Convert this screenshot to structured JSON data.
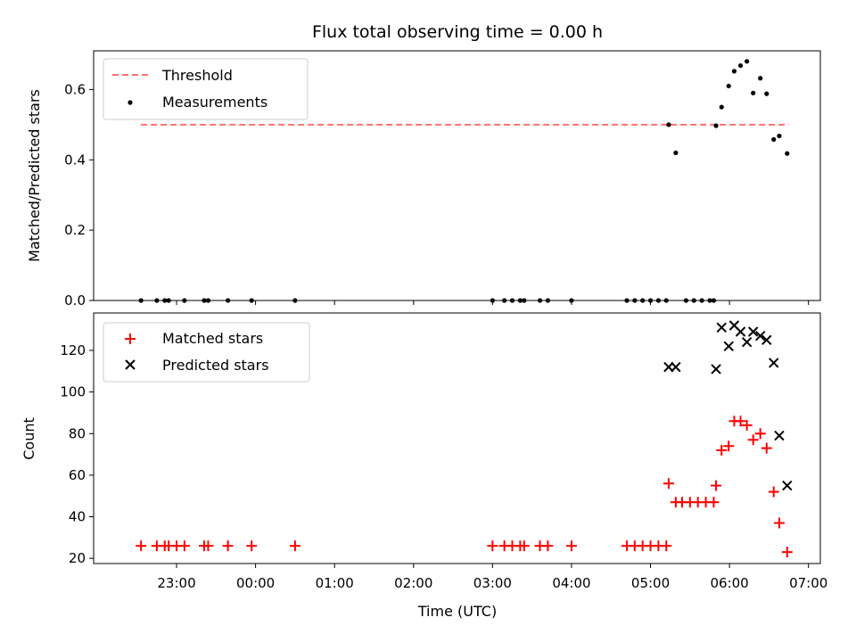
{
  "chart_data": {
    "type": "scatter",
    "title": "Flux total observing time = 0.00 h",
    "xlabel": "Time (UTC)",
    "x_ticks": [
      "23:00",
      "00:00",
      "01:00",
      "02:00",
      "03:00",
      "04:00",
      "05:00",
      "06:00",
      "07:00"
    ],
    "x_tick_hours": [
      23,
      24,
      25,
      26,
      27,
      28,
      29,
      30,
      31
    ],
    "xlim_hours": [
      21.95,
      31.15
    ],
    "top": {
      "ylabel": "Matched/Predicted stars",
      "ylim": [
        0,
        0.71
      ],
      "y_ticks": [
        0.0,
        0.2,
        0.4,
        0.6
      ],
      "y_tick_labels": [
        "0.0",
        "0.2",
        "0.4",
        "0.6"
      ],
      "legend_position": "upper-left",
      "threshold": {
        "name": "Threshold",
        "value": 0.5,
        "x_start": 22.55,
        "x_end": 30.75,
        "color": "#ff7070"
      },
      "series": [
        {
          "name": "Measurements",
          "color": "#000000",
          "points": [
            [
              22.55,
              0
            ],
            [
              22.75,
              0
            ],
            [
              22.85,
              0
            ],
            [
              22.9,
              0
            ],
            [
              23.1,
              0
            ],
            [
              23.35,
              0
            ],
            [
              23.4,
              0
            ],
            [
              23.65,
              0
            ],
            [
              23.95,
              0
            ],
            [
              24.5,
              0
            ],
            [
              27.0,
              0
            ],
            [
              27.15,
              0
            ],
            [
              27.25,
              0
            ],
            [
              27.35,
              0
            ],
            [
              27.4,
              0
            ],
            [
              27.6,
              0
            ],
            [
              27.7,
              0
            ],
            [
              28.0,
              0
            ],
            [
              28.7,
              0
            ],
            [
              28.8,
              0
            ],
            [
              28.9,
              0
            ],
            [
              29.0,
              0
            ],
            [
              29.1,
              0
            ],
            [
              29.2,
              0
            ],
            [
              29.45,
              0
            ],
            [
              29.55,
              0
            ],
            [
              29.65,
              0
            ],
            [
              29.75,
              0
            ],
            [
              29.8,
              0
            ],
            [
              29.23,
              0.5
            ],
            [
              29.32,
              0.42
            ],
            [
              29.83,
              0.497
            ],
            [
              29.9,
              0.55
            ],
            [
              29.99,
              0.61
            ],
            [
              30.06,
              0.652
            ],
            [
              30.14,
              0.668
            ],
            [
              30.22,
              0.68
            ],
            [
              30.3,
              0.59
            ],
            [
              30.39,
              0.632
            ],
            [
              30.47,
              0.588
            ],
            [
              30.56,
              0.458
            ],
            [
              30.63,
              0.468
            ],
            [
              30.73,
              0.418
            ]
          ]
        }
      ]
    },
    "bottom": {
      "ylabel": "Count",
      "ylim": [
        17.5,
        138
      ],
      "y_ticks": [
        20,
        40,
        60,
        80,
        100,
        120
      ],
      "y_tick_labels": [
        "20",
        "40",
        "60",
        "80",
        "100",
        "120"
      ],
      "legend_position": "upper-left",
      "series": [
        {
          "name": "Matched stars",
          "marker": "plus",
          "color": "#ff0000",
          "points": [
            [
              22.55,
              26
            ],
            [
              22.75,
              26
            ],
            [
              22.85,
              26
            ],
            [
              22.9,
              26
            ],
            [
              23.0,
              26
            ],
            [
              23.1,
              26
            ],
            [
              23.35,
              26
            ],
            [
              23.4,
              26
            ],
            [
              23.65,
              26
            ],
            [
              23.95,
              26
            ],
            [
              24.5,
              26
            ],
            [
              27.0,
              26
            ],
            [
              27.15,
              26
            ],
            [
              27.25,
              26
            ],
            [
              27.35,
              26
            ],
            [
              27.4,
              26
            ],
            [
              27.6,
              26
            ],
            [
              27.7,
              26
            ],
            [
              28.0,
              26
            ],
            [
              28.7,
              26
            ],
            [
              28.8,
              26
            ],
            [
              28.9,
              26
            ],
            [
              29.0,
              26
            ],
            [
              29.1,
              26
            ],
            [
              29.2,
              26
            ],
            [
              29.23,
              56
            ],
            [
              29.32,
              47
            ],
            [
              29.4,
              47
            ],
            [
              29.5,
              47
            ],
            [
              29.6,
              47
            ],
            [
              29.7,
              47
            ],
            [
              29.8,
              47
            ],
            [
              29.83,
              55
            ],
            [
              29.9,
              72
            ],
            [
              29.99,
              74
            ],
            [
              30.06,
              86
            ],
            [
              30.14,
              86
            ],
            [
              30.22,
              84
            ],
            [
              30.3,
              77
            ],
            [
              30.39,
              80
            ],
            [
              30.47,
              73
            ],
            [
              30.56,
              52
            ],
            [
              30.63,
              37
            ],
            [
              30.73,
              23
            ]
          ]
        },
        {
          "name": "Predicted stars",
          "marker": "x",
          "color": "#000000",
          "points": [
            [
              29.23,
              112
            ],
            [
              29.32,
              112
            ],
            [
              29.83,
              111
            ],
            [
              29.9,
              131
            ],
            [
              29.99,
              122
            ],
            [
              30.06,
              132
            ],
            [
              30.14,
              129
            ],
            [
              30.22,
              124
            ],
            [
              30.3,
              129
            ],
            [
              30.39,
              127
            ],
            [
              30.47,
              125
            ],
            [
              30.56,
              114
            ],
            [
              30.63,
              79
            ],
            [
              30.73,
              55
            ]
          ]
        }
      ]
    }
  }
}
